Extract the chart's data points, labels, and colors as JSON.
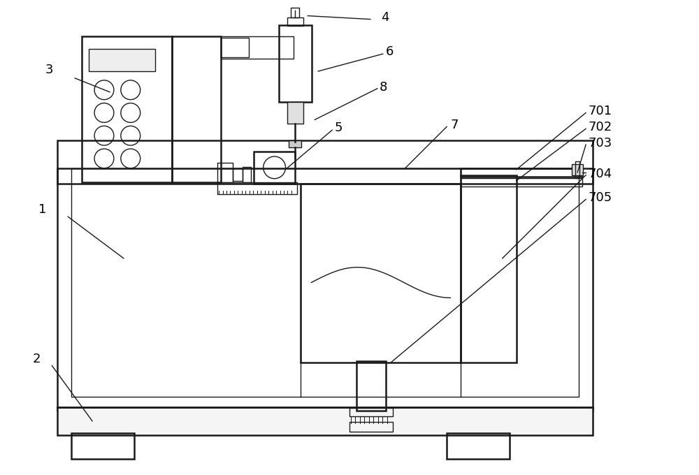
{
  "bg_color": "#ffffff",
  "line_color": "#1a1a1a",
  "lw_main": 1.8,
  "lw_thin": 1.0,
  "label_fs": 13,
  "fig_width": 10.0,
  "fig_height": 6.8
}
